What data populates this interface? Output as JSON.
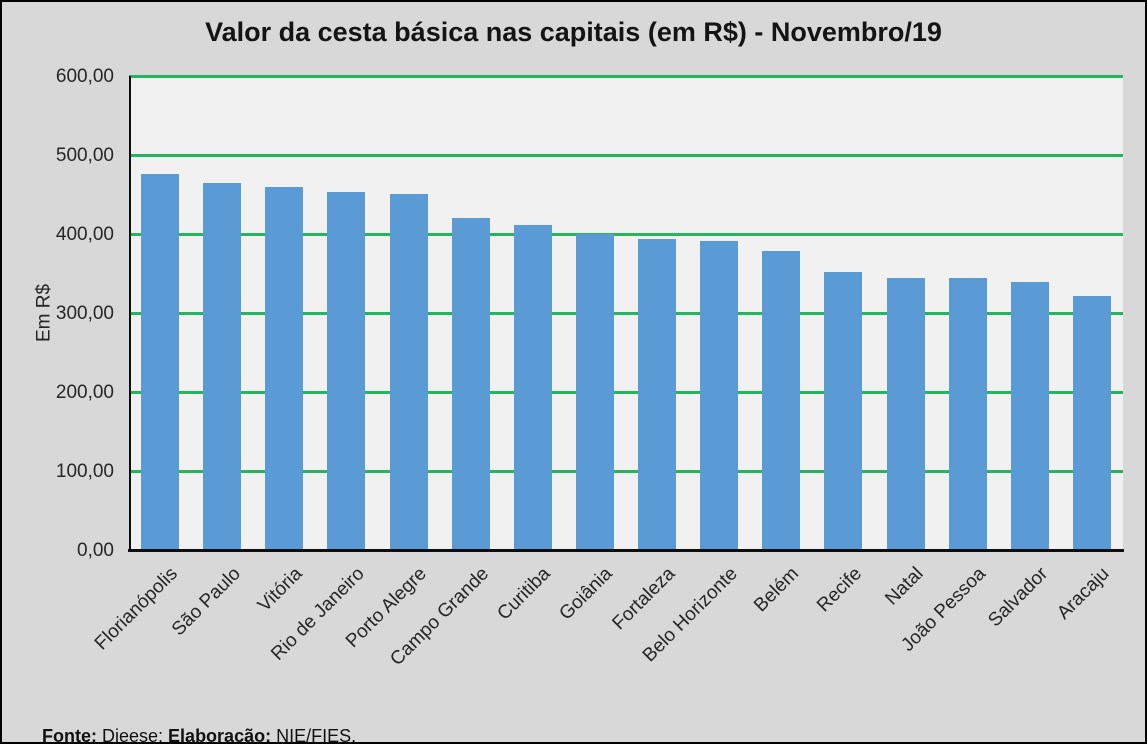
{
  "chart_data": {
    "type": "bar",
    "title": "Valor da cesta básica nas capitais (em R$) - Novembro/19",
    "ylabel": "Em R$",
    "xlabel": "",
    "categories": [
      "Florianópolis",
      "São Paulo",
      "Vitória",
      "Rio de Janeiro",
      "Porto Alegre",
      "Campo Grande",
      "Curitiba",
      "Goiânia",
      "Fortaleza",
      "Belo Horizonte",
      "Belém",
      "Recife",
      "Natal",
      "João Pessoa",
      "Salvador",
      "Aracaju"
    ],
    "values": [
      476,
      464,
      460,
      453,
      451,
      420,
      412,
      400,
      394,
      391,
      378,
      352,
      345,
      344,
      339,
      322
    ],
    "ylim": [
      0,
      600
    ],
    "yticks": [
      {
        "value": 600,
        "label": "600,00"
      },
      {
        "value": 500,
        "label": "500,00"
      },
      {
        "value": 400,
        "label": "400,00"
      },
      {
        "value": 300,
        "label": "300,00"
      },
      {
        "value": 200,
        "label": "200,00"
      },
      {
        "value": 100,
        "label": "100,00"
      },
      {
        "value": 0,
        "label": "0,00"
      }
    ],
    "grid": true,
    "legend": false,
    "colors": {
      "bar": "#5B9BD5",
      "gridline": "#25B55F",
      "plot_bg": "#F1F1F1",
      "page_bg": "#D8D8D8",
      "axis": "#0d0d0d"
    }
  },
  "footer": {
    "source_label": "Fonte:",
    "source_text": " Dieese; ",
    "elaboration_label": "Elaboração:",
    "elaboration_text": " NIE/FIES."
  }
}
